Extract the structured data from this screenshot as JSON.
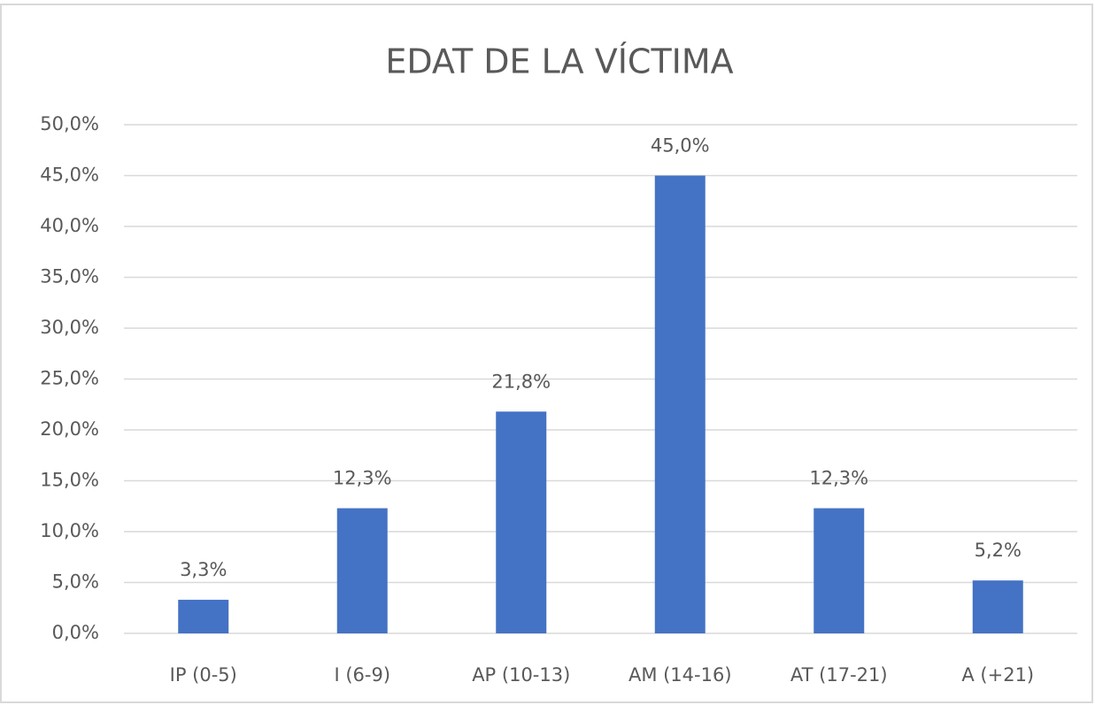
{
  "chart_data": {
    "type": "bar",
    "title": "EDAT DE LA VÍCTIMA",
    "categories": [
      "IP (0-5)",
      "I (6-9)",
      "AP (10-13)",
      "AM (14-16)",
      "AT (17-21)",
      "A (+21)"
    ],
    "values": [
      3.3,
      12.3,
      21.8,
      45.0,
      12.3,
      5.2
    ],
    "value_labels": [
      "3,3%",
      "12,3%",
      "21,8%",
      "45,0%",
      "12,3%",
      "5,2%"
    ],
    "color": "#4472c4",
    "ylim": [
      0,
      50
    ],
    "yticks": [
      {
        "value": 0,
        "label": "0,0%"
      },
      {
        "value": 5,
        "label": "5,0%"
      },
      {
        "value": 10,
        "label": "10,0%"
      },
      {
        "value": 15,
        "label": "15,0%"
      },
      {
        "value": 20,
        "label": "20,0%"
      },
      {
        "value": 25,
        "label": "25,0%"
      },
      {
        "value": 30,
        "label": "30,0%"
      },
      {
        "value": 35,
        "label": "35,0%"
      },
      {
        "value": 40,
        "label": "40,0%"
      },
      {
        "value": 45,
        "label": "45,0%"
      },
      {
        "value": 50,
        "label": "50,0%"
      }
    ],
    "grid": true
  }
}
